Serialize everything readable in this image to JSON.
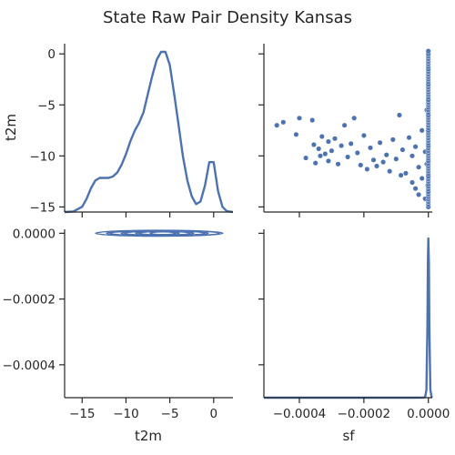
{
  "chart_data": {
    "type": "pairplot",
    "title": "State Raw Pair Density Kansas",
    "variables": [
      "t2m",
      "sf"
    ],
    "color": "#4c72b0",
    "axes": {
      "t2m": {
        "lim": [
          -17,
          2.2
        ],
        "ticks": [
          -15,
          -10,
          -5,
          0
        ],
        "tick_labels": [
          "−15",
          "−10",
          "−5",
          "0"
        ],
        "label": "t2m"
      },
      "t2m_y": {
        "lim": [
          -15.5,
          1
        ],
        "ticks": [
          0,
          -5,
          -10,
          -15
        ],
        "tick_labels": [
          "0",
          "−5",
          "−10",
          "−15"
        ],
        "label": "t2m"
      },
      "sf": {
        "lim": [
          -0.00051,
          1.2e-05
        ],
        "ticks": [
          -0.0004,
          -0.0002,
          0
        ],
        "tick_labels": [
          "−0.0004",
          "−0.0002",
          "0.0000"
        ],
        "label": "sf"
      },
      "sf_y": {
        "lim": [
          -0.0005,
          1.2e-05
        ],
        "ticks": [
          0,
          -0.0002,
          -0.0004
        ],
        "tick_labels": [
          "0.0000",
          "−0.0002",
          "−0.0004"
        ]
      }
    },
    "panels": [
      {
        "id": "t2m-t2m",
        "kind": "kde",
        "variable": "t2m",
        "x": [
          -17,
          -16,
          -15,
          -14.5,
          -14,
          -13.5,
          -13,
          -12.5,
          -12,
          -11.5,
          -11,
          -10.5,
          -10,
          -9.5,
          -9,
          -8.5,
          -8,
          -7.5,
          -7,
          -6.5,
          -6,
          -5.5,
          -5,
          -4.5,
          -4,
          -3.5,
          -3,
          -2.5,
          -2,
          -1.5,
          -1,
          -0.5,
          0,
          0.5,
          1,
          1.5,
          2.2
        ],
        "density": [
          0,
          0.002,
          0.02,
          0.05,
          0.09,
          0.12,
          0.13,
          0.13,
          0.13,
          0.135,
          0.15,
          0.18,
          0.22,
          0.27,
          0.31,
          0.34,
          0.38,
          0.45,
          0.52,
          0.58,
          0.61,
          0.61,
          0.56,
          0.45,
          0.33,
          0.21,
          0.12,
          0.06,
          0.03,
          0.04,
          0.1,
          0.19,
          0.19,
          0.08,
          0.02,
          0.003,
          0
        ]
      },
      {
        "id": "sf-t2m",
        "kind": "scatter",
        "points": [
          [
            -0.00047,
            -7.0
          ],
          [
            -0.00045,
            -6.7
          ],
          [
            -0.0004,
            -6.3
          ],
          [
            -0.00041,
            -7.9
          ],
          [
            -0.00038,
            -10.2
          ],
          [
            -0.00036,
            -6.5
          ],
          [
            -0.000355,
            -8.9
          ],
          [
            -0.00035,
            -10.7
          ],
          [
            -0.00034,
            -9.3
          ],
          [
            -0.000335,
            -10.0
          ],
          [
            -0.00033,
            -8.1
          ],
          [
            -0.00032,
            -9.8
          ],
          [
            -0.00031,
            -8.6
          ],
          [
            -0.00031,
            -10.5
          ],
          [
            -0.0003,
            -9.5
          ],
          [
            -0.00029,
            -8.3
          ],
          [
            -0.00028,
            -10.8
          ],
          [
            -0.00027,
            -9.0
          ],
          [
            -0.00026,
            -7.0
          ],
          [
            -0.00025,
            -10.1
          ],
          [
            -0.00024,
            -8.8
          ],
          [
            -0.00023,
            -6.3
          ],
          [
            -0.00022,
            -9.7
          ],
          [
            -0.00021,
            -10.9
          ],
          [
            -0.0002,
            -8.0
          ],
          [
            -0.00019,
            -11.3
          ],
          [
            -0.00018,
            -9.2
          ],
          [
            -0.00017,
            -10.4
          ],
          [
            -0.00016,
            -11.0
          ],
          [
            -0.00015,
            -8.7
          ],
          [
            -0.00014,
            -10.6
          ],
          [
            -0.00013,
            -9.9
          ],
          [
            -0.00012,
            -11.5
          ],
          [
            -0.00011,
            -8.4
          ],
          [
            -0.0001,
            -10.3
          ],
          [
            -9e-05,
            -6.0
          ],
          [
            -8.5e-05,
            -11.9
          ],
          [
            -8e-05,
            -9.4
          ],
          [
            -7e-05,
            -11.7
          ],
          [
            -6e-05,
            -8.2
          ],
          [
            -5e-05,
            -10.0
          ],
          [
            -5e-05,
            -12.6
          ],
          [
            -4e-05,
            -13.2
          ],
          [
            -4e-05,
            -9.1
          ],
          [
            -3e-05,
            -11.1
          ],
          [
            -3e-05,
            -13.8
          ],
          [
            -2e-05,
            -7.5
          ],
          [
            -2e-05,
            -12.2
          ],
          [
            -1e-05,
            -9.6
          ],
          [
            -1e-05,
            -14.2
          ],
          [
            -5e-06,
            -10.8
          ],
          [
            -5e-06,
            -5.5
          ],
          [
            -2e-06,
            -12.9
          ],
          [
            0,
            -15.0
          ],
          [
            0,
            -13.5
          ],
          [
            0,
            -12.0
          ],
          [
            0,
            -10.5
          ],
          [
            0,
            -9.0
          ],
          [
            0,
            -7.5
          ],
          [
            0,
            -6.0
          ],
          [
            0,
            -4.5
          ],
          [
            0,
            -3.0
          ],
          [
            0,
            -1.5
          ],
          [
            0,
            0.0
          ],
          [
            0,
            0.3
          ]
        ]
      },
      {
        "id": "t2m-sf",
        "kind": "kde2d",
        "center": [
          -6,
          0
        ],
        "x_extent": [
          -14,
          0.5
        ]
      },
      {
        "id": "sf-sf",
        "kind": "kde",
        "variable": "sf",
        "x": [
          -0.00051,
          -0.0002,
          -5e-05,
          -1.5e-05,
          -1e-05,
          -6e-06,
          -3e-06,
          -1.5e-06,
          0,
          1.5e-06,
          3e-06,
          6e-06,
          1e-05,
          1.2e-05
        ],
        "density": [
          0,
          0,
          0,
          0.0005,
          0.004,
          0.05,
          0.45,
          0.85,
          1.0,
          0.85,
          0.45,
          0.05,
          0.004,
          0
        ]
      }
    ]
  }
}
